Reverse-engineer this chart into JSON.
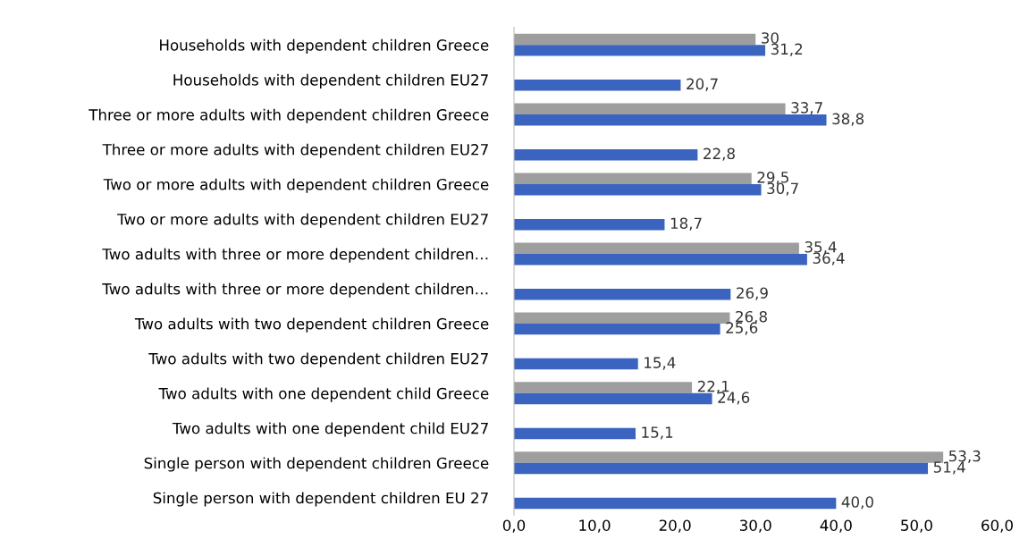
{
  "chart_data": {
    "type": "bar",
    "orientation": "horizontal",
    "categories": [
      "Households with dependent children Greece",
      "Households with dependent children EU27",
      "Three or more adults with dependent children Greece",
      "Three or more adults with dependent children EU27",
      "Two or more adults with dependent children Greece",
      "Two or more adults with dependent children EU27",
      "Two adults with three or more dependent children…",
      "Two adults with three or more dependent children…",
      "Two adults with two dependent children Greece",
      "Two adults with two dependent children EU27",
      "Two adults with one dependent child Greece",
      "Two adults with one dependent child EU27",
      "Single person with dependent children Greece",
      "Single person with dependent children EU 27"
    ],
    "series": [
      {
        "color": "#9e9e9e",
        "values": [
          30,
          null,
          33.7,
          null,
          29.5,
          null,
          35.4,
          null,
          26.8,
          null,
          22.1,
          null,
          53.3,
          null
        ],
        "value_labels": [
          "30",
          null,
          "33,7",
          null,
          "29,5",
          null,
          "35,4",
          null,
          "26,8",
          null,
          "22,1",
          null,
          "53,3",
          null
        ]
      },
      {
        "color": "#3b64c0",
        "values": [
          31.2,
          20.7,
          38.8,
          22.8,
          30.7,
          18.7,
          36.4,
          26.9,
          25.6,
          15.4,
          24.6,
          15.1,
          51.4,
          40.0
        ],
        "value_labels": [
          "31,2",
          "20,7",
          "38,8",
          "22,8",
          "30,7",
          "18,7",
          "36,4",
          "26,9",
          "25,6",
          "15,4",
          "24,6",
          "15,1",
          "51,4",
          "40,0"
        ]
      }
    ],
    "xlim": [
      0,
      60
    ],
    "xticks": [
      {
        "value": 0,
        "label": "0,0"
      },
      {
        "value": 10,
        "label": "10,0"
      },
      {
        "value": 20,
        "label": "20,0"
      },
      {
        "value": 30,
        "label": "30,0"
      },
      {
        "value": 40,
        "label": "40,0"
      },
      {
        "value": 50,
        "label": "50,0"
      },
      {
        "value": 60,
        "label": "60,0"
      }
    ],
    "grid": false,
    "legend": false
  }
}
